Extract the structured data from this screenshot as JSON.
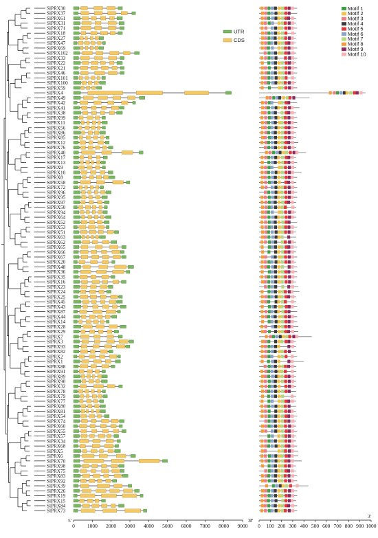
{
  "figure": {
    "genes": [
      "SlPRX30",
      "SlPRX37",
      "SlPRX61",
      "SlPRX31",
      "SlPRX71",
      "SlPRX18",
      "SlPRX27",
      "SlPRX47",
      "SlPRX69",
      "SlPRX102",
      "SlPRX33",
      "SlPRX22",
      "SlPRX21",
      "SlPRX46",
      "SlPRX101",
      "SlPRX100",
      "SlPRX59",
      "SlPRX4",
      "SlPRX49",
      "SlPRX42",
      "SlPRX41",
      "SlPRX38",
      "SlPRX99",
      "SlPRX11",
      "SlPRX56",
      "SlPRX86",
      "SlPRX85",
      "SlPRX12",
      "SlPRX76",
      "SlPRX40",
      "SlPRX17",
      "SlPRX13",
      "SlPRX9",
      "SlPRX10",
      "SlPRX8",
      "SlPRX58",
      "SlPRX72",
      "SlPRX96",
      "SlPRX95",
      "SlPRX97",
      "SlPRX50",
      "SlPRX94",
      "SlPRX64",
      "SlPRX52",
      "SlPRX53",
      "SlPRX51",
      "SlPRX63",
      "SlPRX62",
      "SlPRX65",
      "SlPRX66",
      "SlPRX67",
      "SlPRX20",
      "SlPRX48",
      "SlPRX36",
      "SlPRX35",
      "SlPRX16",
      "SlPRX23",
      "SlPRX24",
      "SlPRX25",
      "SlPRX45",
      "SlPRX43",
      "SlPRX87",
      "SlPRX44",
      "SlPRX14",
      "SlPRX28",
      "SlPRX29",
      "SlPRX7",
      "SlPRX3",
      "SlPRX93",
      "SlPRX82",
      "SlPRX2",
      "SlPRX1",
      "SlPRX88",
      "SlPRX91",
      "SlPRX89",
      "SlPRX90",
      "SlPRX32",
      "SlPRX78",
      "SlPRX79",
      "SlPRX77",
      "SlPRX80",
      "SlPRX81",
      "SlPRX54",
      "SlPRX74",
      "SlPRX60",
      "SlPRX55",
      "SlPRX57",
      "SlPRX34",
      "SlPRX68",
      "SlPRX5",
      "SlPRX6",
      "SlPRX70",
      "SlPRX98",
      "SlPRX75",
      "SlPRX83",
      "SlPRX92",
      "SlPRX39",
      "SlPRX26",
      "SlPRX19",
      "SlPRX15",
      "SlPRX84",
      "SlPRX73"
    ],
    "gene_lengths": [
      2600,
      3300,
      2600,
      2700,
      2700,
      2600,
      1600,
      1700,
      1600,
      3500,
      2700,
      2600,
      2700,
      2700,
      1700,
      1700,
      1500,
      8400,
      3800,
      3300,
      2700,
      2600,
      1700,
      1800,
      1700,
      1700,
      1900,
      1900,
      2100,
      3700,
      1800,
      1700,
      1700,
      2100,
      2200,
      3000,
      1600,
      2000,
      1800,
      1900,
      1800,
      1800,
      2000,
      1900,
      1900,
      2400,
      1700,
      2300,
      2800,
      2700,
      2800,
      2200,
      3200,
      3000,
      2200,
      2800,
      2100,
      2000,
      2600,
      2600,
      2800,
      2500,
      2300,
      1900,
      2800,
      2400,
      2600,
      3200,
      3000,
      2100,
      2500,
      2500,
      2200,
      1700,
      1800,
      1800,
      2600,
      1700,
      1800,
      1600,
      1700,
      1700,
      1900,
      2700,
      2600,
      2800,
      2400,
      2500,
      2400,
      2500,
      3300,
      5000,
      2700,
      2700,
      2900,
      2300,
      3100,
      3500,
      3700,
      1700,
      2700,
      3900
    ],
    "structure_legend": [
      "UTR",
      "CDS"
    ],
    "structure_axis": {
      "start_label": "5'",
      "end_label": "3'",
      "ticks": [
        "0",
        "1000",
        "2000",
        "3000",
        "4000",
        "5000",
        "6000",
        "7000",
        "8000",
        "9000"
      ]
    },
    "motif_lengths": [
      340,
      340,
      330,
      330,
      340,
      330,
      330,
      330,
      340,
      330,
      340,
      330,
      340,
      340,
      330,
      330,
      340,
      950,
      450,
      340,
      360,
      330,
      340,
      340,
      340,
      330,
      330,
      350,
      330,
      420,
      330,
      340,
      330,
      380,
      340,
      330,
      340,
      340,
      340,
      330,
      330,
      330,
      330,
      340,
      340,
      330,
      330,
      330,
      340,
      330,
      340,
      330,
      340,
      340,
      340,
      330,
      350,
      360,
      330,
      330,
      340,
      340,
      340,
      340,
      350,
      350,
      470,
      330,
      330,
      330,
      340,
      400,
      330,
      330,
      330,
      330,
      330,
      330,
      330,
      330,
      330,
      330,
      340,
      330,
      330,
      340,
      330,
      330,
      340,
      350,
      350,
      380,
      330,
      330,
      340,
      340,
      440,
      340,
      340,
      330,
      340,
      340
    ],
    "motif_axis": {
      "start_label": "0",
      "end_label": "3'",
      "ticks": [
        "0",
        "100",
        "200",
        "300",
        "400",
        "500",
        "600",
        "700",
        "800",
        "900",
        "1000"
      ]
    },
    "motif_legend": [
      {
        "label": "Motif 1",
        "color": "#3ea14a"
      },
      {
        "label": "Motif 2",
        "color": "#f0c24d"
      },
      {
        "label": "Motif 3",
        "color": "#ef7f86"
      },
      {
        "label": "Motif 4",
        "color": "#3a3a3a"
      },
      {
        "label": "Motif 5",
        "color": "#e2383b"
      },
      {
        "label": "Motif 6",
        "color": "#8aa4c8"
      },
      {
        "label": "Motif 7",
        "color": "#b6d77c"
      },
      {
        "label": "Motif 8",
        "color": "#f39c3c"
      },
      {
        "label": "Motif 9",
        "color": "#8a2c5e"
      },
      {
        "label": "Motif 10",
        "color": "#f6b3b7"
      }
    ],
    "colors": {
      "utr": "#7cb662",
      "cds": "#f3c968",
      "intron": "#444444",
      "tree": "#111111"
    }
  }
}
